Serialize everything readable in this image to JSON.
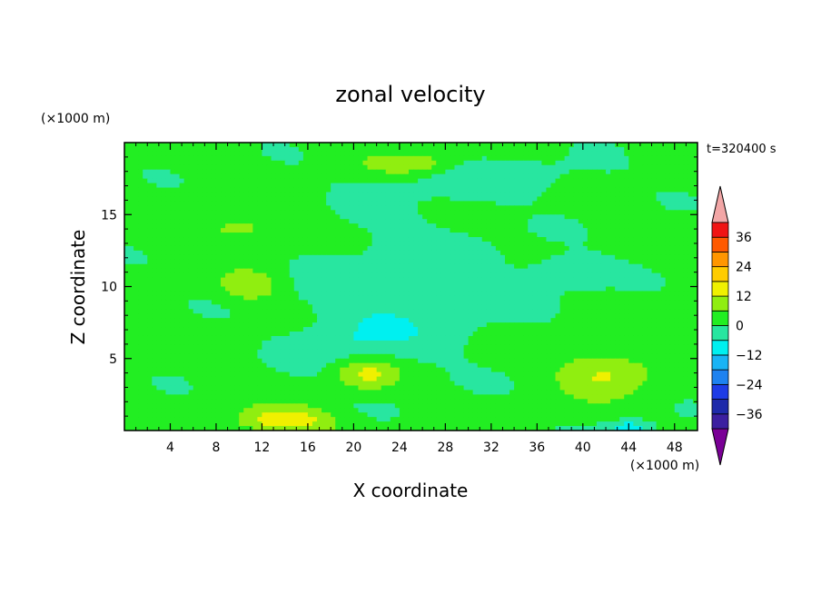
{
  "chart_data": {
    "type": "heatmap",
    "title": "zonal velocity",
    "xlabel": "X coordinate",
    "ylabel": "Z coordinate",
    "x_unit": "(×1000 m)",
    "y_unit": "(×1000 m)",
    "time_label": "t=320400 s",
    "xlim": [
      0,
      50
    ],
    "ylim": [
      0,
      20
    ],
    "x_ticks": [
      4,
      8,
      12,
      16,
      20,
      24,
      28,
      32,
      36,
      40,
      44,
      48
    ],
    "y_ticks": [
      5,
      10,
      15
    ],
    "colorbar": {
      "levels": [
        -42,
        -36,
        -30,
        -24,
        -18,
        -12,
        -6,
        0,
        6,
        12,
        18,
        24,
        30,
        36,
        42
      ],
      "tick_labels": [
        -36,
        -24,
        -12,
        0,
        12,
        24,
        36
      ],
      "colors": [
        "#7a0096",
        "#3c1fa0",
        "#1e2aaa",
        "#1e3ce6",
        "#1e82f0",
        "#19b4f5",
        "#00f0f0",
        "#28e6a0",
        "#22ee22",
        "#90ee10",
        "#f0f000",
        "#ffcc00",
        "#ff9600",
        "#ff5a00",
        "#f01414",
        "#f2a6a6"
      ],
      "extend": "both"
    },
    "field": {
      "background_value": 2,
      "features": [
        {
          "x": 25,
          "z": 10,
          "sx": 9,
          "sz": 5,
          "v": -6,
          "note": "broad weak negative centre"
        },
        {
          "x": 20,
          "z": 6,
          "sx": 5,
          "sz": 2.5,
          "v": -6
        },
        {
          "x": 32,
          "z": 17.5,
          "sx": 10,
          "sz": 1.5,
          "v": -5
        },
        {
          "x": 39,
          "z": 11,
          "sx": 4,
          "sz": 1.2,
          "v": -7
        },
        {
          "x": 21,
          "z": 4,
          "sx": 3,
          "sz": 1.2,
          "v": 14
        },
        {
          "x": 14,
          "z": 0.7,
          "sx": 4,
          "sz": 0.9,
          "v": 15
        },
        {
          "x": 42,
          "z": 4,
          "sx": 4,
          "sz": 1.5,
          "v": 11
        },
        {
          "x": 11,
          "z": 10,
          "sx": 2.5,
          "sz": 1,
          "v": 9
        },
        {
          "x": 25,
          "z": 18.5,
          "sx": 4,
          "sz": 0.8,
          "v": 9
        },
        {
          "x": 10,
          "z": 14,
          "sx": 3,
          "sz": 0.8,
          "v": 8
        },
        {
          "x": 44,
          "z": 0.2,
          "sx": 2,
          "sz": 0.5,
          "v": -12
        }
      ]
    }
  }
}
